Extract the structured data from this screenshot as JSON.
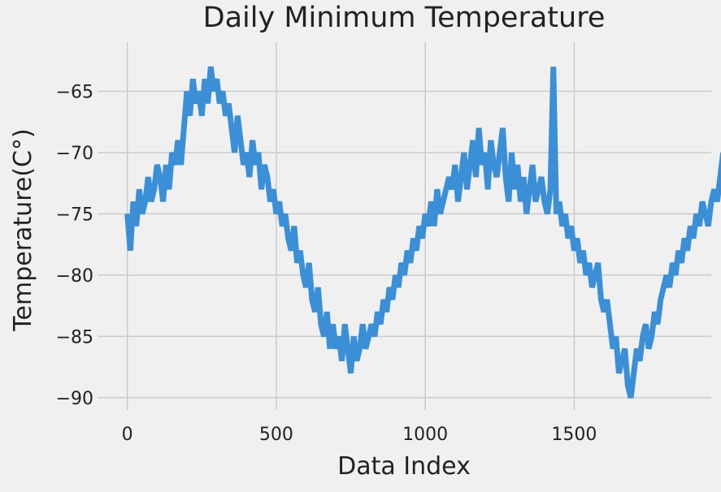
{
  "chart_data": {
    "type": "line",
    "title": "Daily Minimum Temperature",
    "xlabel": "Data Index",
    "ylabel": "Temperature(C°)",
    "xlim": [
      -100,
      1960
    ],
    "ylim": [
      -91,
      -61
    ],
    "xticks": [
      0,
      500,
      1000,
      1500
    ],
    "xtick_labels": [
      "0",
      "500",
      "1000",
      "1500"
    ],
    "yticks": [
      -65,
      -70,
      -75,
      -80,
      -85,
      -90
    ],
    "ytick_labels": [
      "−65",
      "−70",
      "−75",
      "−80",
      "−85",
      "−90"
    ],
    "grid": true,
    "series_color": "#3a8fd6",
    "background": "#f0f0f0",
    "grid_color": "#cbcbcb",
    "x_step": 10,
    "series": [
      {
        "values": [
          -75,
          -78,
          -74,
          -76,
          -73,
          -75,
          -74,
          -72,
          -74,
          -73,
          -71,
          -72,
          -74,
          -71,
          -73,
          -70,
          -71,
          -69,
          -71,
          -68,
          -65,
          -67,
          -64,
          -66,
          -65,
          -67,
          -64,
          -66,
          -63,
          -65,
          -64,
          -66,
          -65,
          -67,
          -66,
          -68,
          -70,
          -67,
          -69,
          -71,
          -70,
          -72,
          -69,
          -71,
          -70,
          -73,
          -71,
          -72,
          -74,
          -73,
          -75,
          -74,
          -76,
          -75,
          -77,
          -78,
          -76,
          -79,
          -78,
          -80,
          -81,
          -79,
          -82,
          -83,
          -81,
          -84,
          -85,
          -83,
          -86,
          -84,
          -86,
          -85,
          -87,
          -84,
          -86,
          -88,
          -85,
          -87,
          -86,
          -84,
          -86,
          -85,
          -84,
          -85,
          -83,
          -84,
          -82,
          -83,
          -81,
          -82,
          -80,
          -81,
          -79,
          -80,
          -78,
          -79,
          -77,
          -78,
          -76,
          -77,
          -75,
          -76,
          -74,
          -76,
          -73,
          -75,
          -74,
          -73,
          -72,
          -73,
          -71,
          -74,
          -72,
          -70,
          -73,
          -71,
          -69,
          -72,
          -68,
          -71,
          -70,
          -73,
          -69,
          -71,
          -72,
          -70,
          -68,
          -72,
          -74,
          -70,
          -73,
          -71,
          -74,
          -72,
          -75,
          -73,
          -71,
          -74,
          -73,
          -72,
          -74,
          -75,
          -73,
          -63,
          -75,
          -74,
          -76,
          -75,
          -77,
          -76,
          -78,
          -77,
          -79,
          -78,
          -80,
          -79,
          -81,
          -80,
          -79,
          -82,
          -83,
          -82,
          -84,
          -86,
          -85,
          -88,
          -87,
          -86,
          -89,
          -90,
          -88,
          -86,
          -87,
          -85,
          -84,
          -86,
          -85,
          -83,
          -84,
          -82,
          -81,
          -80,
          -81,
          -79,
          -80,
          -78,
          -79,
          -77,
          -78,
          -76,
          -77,
          -75,
          -76,
          -74,
          -75,
          -76,
          -74,
          -73,
          -74,
          -72,
          -70,
          -72,
          -71,
          -70,
          -72,
          -71,
          -73,
          -70,
          -69,
          -71,
          -70,
          -72,
          -71,
          -70,
          -72,
          -73,
          -72,
          -74,
          -75,
          -73,
          -76,
          -74,
          -75,
          -76,
          -75,
          -77,
          -76,
          -75,
          -77,
          -76,
          -75,
          -76,
          -77,
          -62,
          -76,
          -77,
          -76,
          -77,
          -78,
          -77,
          -78,
          -79,
          -78,
          -80,
          -79,
          -81,
          -80,
          -82,
          -80,
          -84,
          -80,
          -82,
          -79,
          -81,
          -80,
          -79,
          -80,
          -78,
          -79,
          -80,
          -79,
          -80,
          -79,
          -78,
          -77,
          -76
        ]
      }
    ]
  }
}
